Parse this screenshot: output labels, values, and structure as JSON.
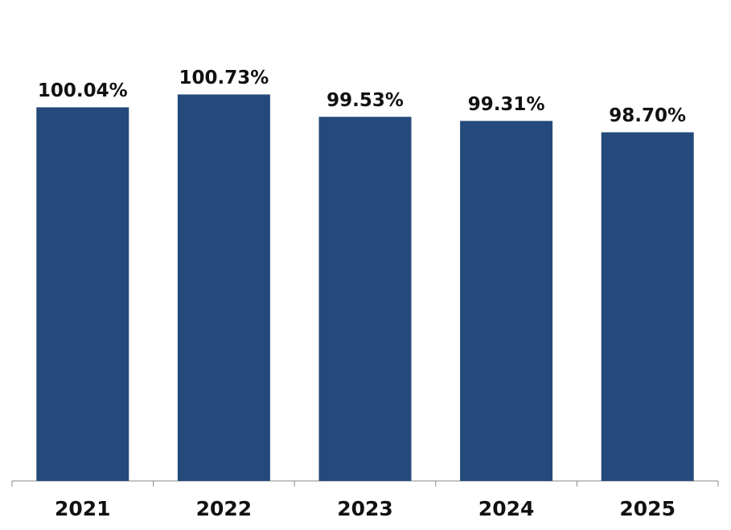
{
  "chart_data": {
    "type": "bar",
    "categories": [
      "2021",
      "2022",
      "2023",
      "2024",
      "2025"
    ],
    "values": [
      100.04,
      100.73,
      99.53,
      99.31,
      98.7
    ],
    "value_labels": [
      "100.04%",
      "100.73%",
      "99.53%",
      "99.31%",
      "98.70%"
    ],
    "color": "#234a7a",
    "ylim": [
      80,
      102
    ]
  }
}
